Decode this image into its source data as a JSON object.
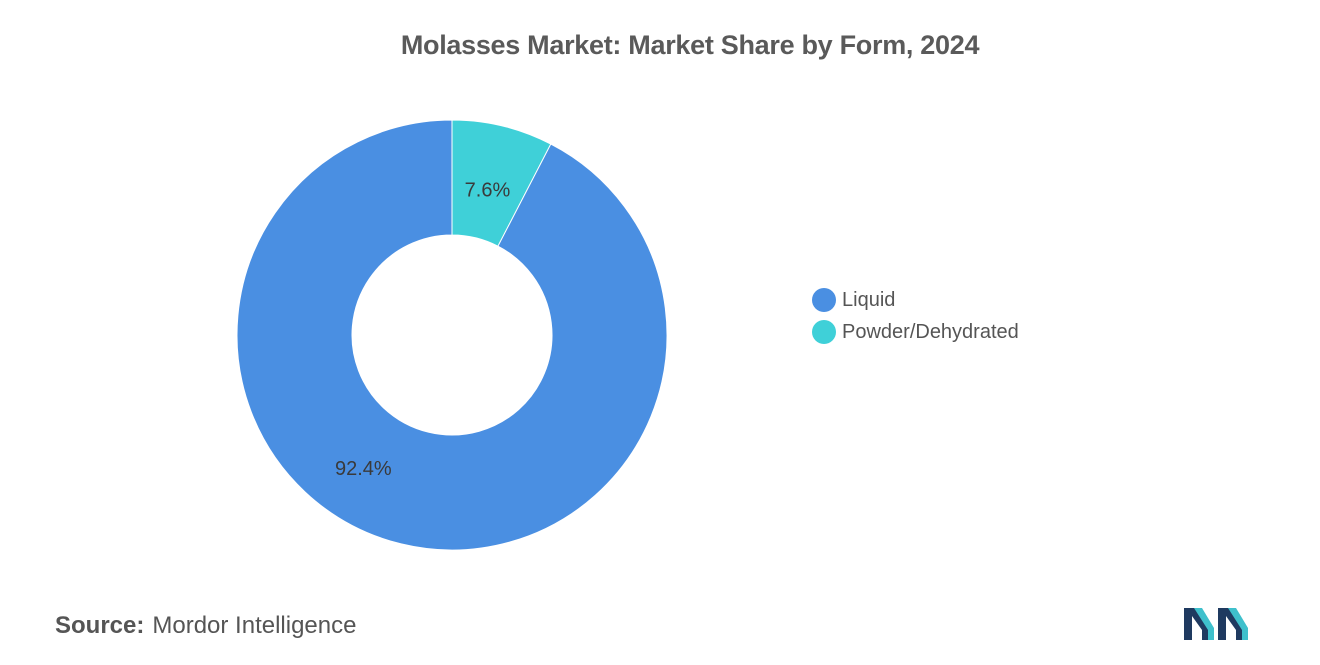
{
  "chart_data": {
    "type": "pie",
    "title": "Molasses Market: Market Share by Form, 2024",
    "donut": true,
    "slices": [
      {
        "label": "Liquid",
        "value": 92.4,
        "display": "92.4%",
        "color": "#4a8fe2"
      },
      {
        "label": "Powder/Dehydrated",
        "value": 7.6,
        "display": "7.6%",
        "color": "#3fd0d8"
      }
    ],
    "legend_position": "right"
  },
  "source": {
    "label": "Source:",
    "text": "Mordor Intelligence"
  },
  "logo": {
    "icon": "mordor-intelligence-logo-icon",
    "colors": [
      "#1f3a60",
      "#3fc0cc"
    ]
  }
}
